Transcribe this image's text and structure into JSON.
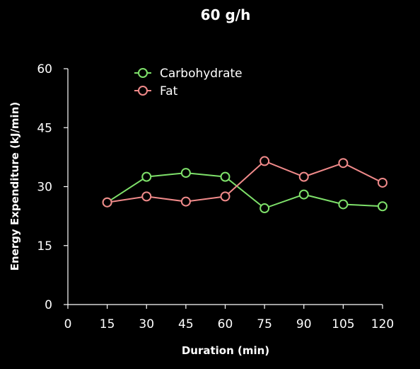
{
  "chart_data": {
    "type": "line",
    "title": "60 g/h",
    "xlabel": "Duration (min)",
    "ylabel": "Energy Expenditure (kJ/min)",
    "x": [
      15,
      30,
      45,
      60,
      75,
      90,
      105,
      120
    ],
    "xticks": [
      0,
      15,
      30,
      45,
      60,
      75,
      90,
      105,
      120
    ],
    "yticks": [
      0,
      15,
      30,
      45,
      60
    ],
    "xlim": [
      0,
      120
    ],
    "ylim": [
      0,
      60
    ],
    "grid": false,
    "legend_position": "top-left",
    "series": [
      {
        "name": "Carbohydrate",
        "color": "#7ee06a",
        "values": [
          26,
          32.5,
          33.5,
          32.5,
          24.5,
          28,
          25.5,
          25
        ]
      },
      {
        "name": "Fat",
        "color": "#f08a8a",
        "values": [
          26,
          27.5,
          26.2,
          27.5,
          36.5,
          32.5,
          36,
          31
        ]
      }
    ]
  }
}
